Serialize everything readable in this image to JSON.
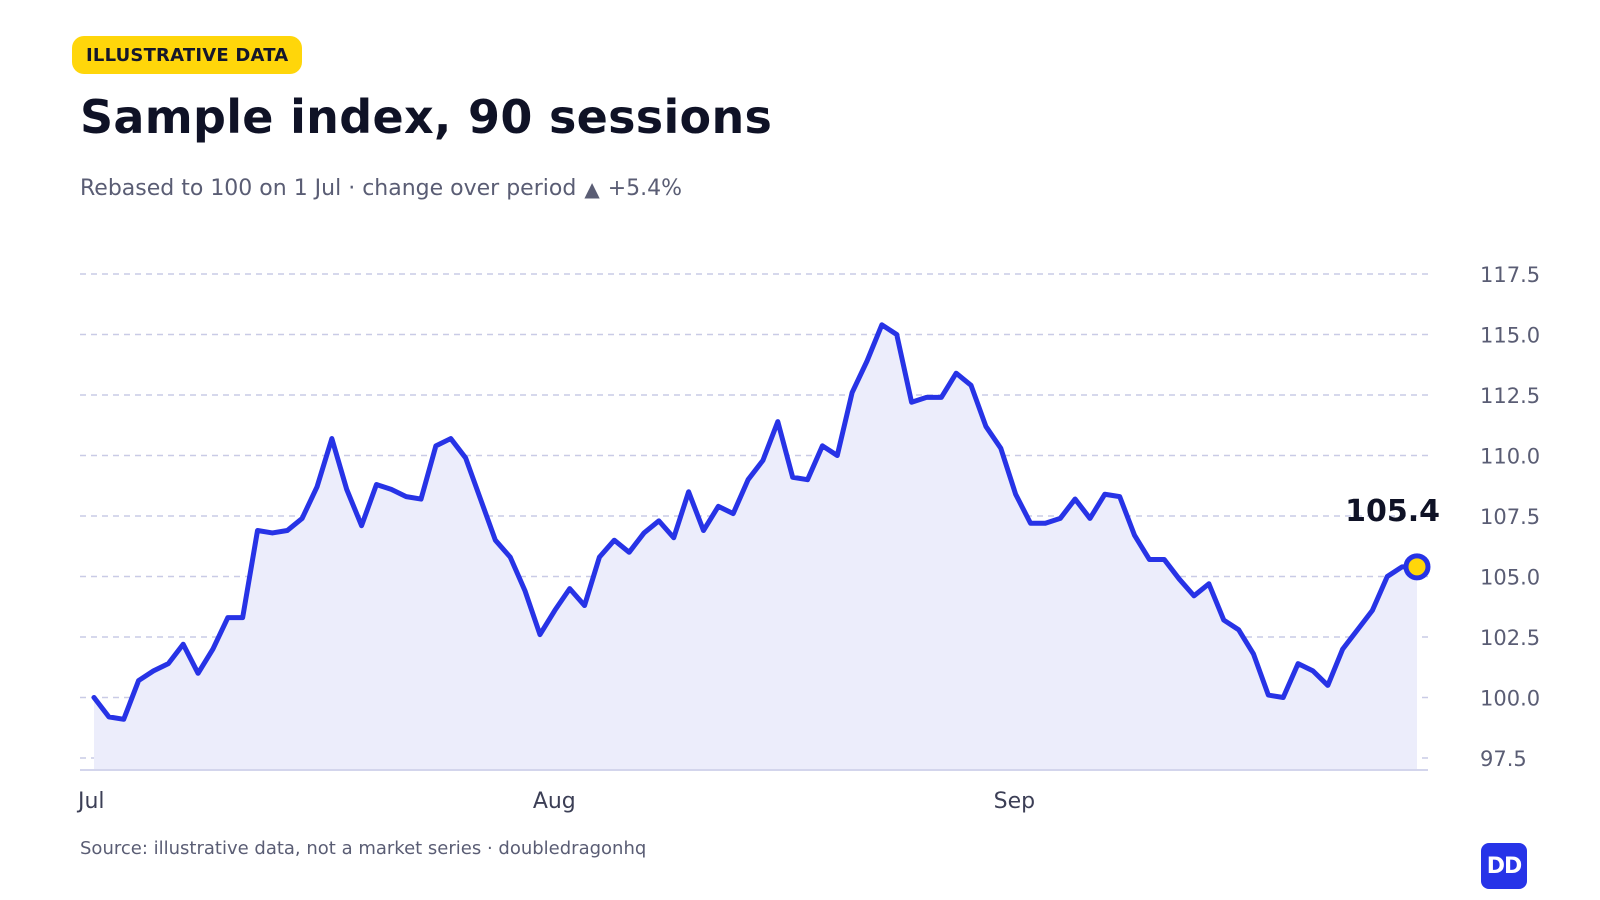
{
  "badge": "ILLUSTRATIVE DATA",
  "subtitle": {
    "text": "Rebased to 100 on 1 Jul · change over period",
    "change_icon": "triangle-up-icon",
    "change": "+5.4%"
  },
  "source": "Source: illustrative data, not a market series · doubledragonhq",
  "logo": {
    "text": "DD",
    "color": "#2734e8"
  },
  "colors": {
    "line": "#2733e6",
    "area": "#ecedfb",
    "grid": "#c9cbe6",
    "marker": "#ffd60a"
  },
  "chart_data": {
    "type": "line",
    "title": "Sample index, 90 sessions",
    "xlabel": "",
    "ylabel": "",
    "x_tick_labels": [
      "Jul",
      "Aug",
      "Sep"
    ],
    "x_tick_positions": [
      1,
      32,
      63
    ],
    "x": [
      1,
      2,
      3,
      4,
      5,
      6,
      7,
      8,
      9,
      10,
      11,
      12,
      13,
      14,
      15,
      16,
      17,
      18,
      19,
      20,
      21,
      22,
      23,
      24,
      25,
      26,
      27,
      28,
      29,
      30,
      31,
      32,
      33,
      34,
      35,
      36,
      37,
      38,
      39,
      40,
      41,
      42,
      43,
      44,
      45,
      46,
      47,
      48,
      49,
      50,
      51,
      52,
      53,
      54,
      55,
      56,
      57,
      58,
      59,
      60,
      61,
      62,
      63,
      64,
      65,
      66,
      67,
      68,
      69,
      70,
      71,
      72,
      73,
      74,
      75,
      76,
      77,
      78,
      79,
      80,
      81,
      82,
      83,
      84,
      85,
      86,
      87,
      88,
      89,
      90
    ],
    "series": [
      {
        "values": [
          100.0,
          99.2,
          99.1,
          100.7,
          101.1,
          101.4,
          102.2,
          101.0,
          102.0,
          103.3,
          103.3,
          106.9,
          106.8,
          106.9,
          107.4,
          108.7,
          110.7,
          108.6,
          107.1,
          108.8,
          108.6,
          108.3,
          108.2,
          110.4,
          110.7,
          109.9,
          108.2,
          106.5,
          105.8,
          104.4,
          102.6,
          103.6,
          104.5,
          103.8,
          105.8,
          106.5,
          106.0,
          106.8,
          107.3,
          106.6,
          108.5,
          106.9,
          107.9,
          107.6,
          109.0,
          109.8,
          111.4,
          109.1,
          109.0,
          110.4,
          110.0,
          112.6,
          113.9,
          115.4,
          115.0,
          112.2,
          112.4,
          112.4,
          113.4,
          112.9,
          111.2,
          110.3,
          108.4,
          107.2,
          107.2,
          107.4,
          108.2,
          107.4,
          108.4,
          108.3,
          106.7,
          105.7,
          105.7,
          104.9,
          104.2,
          104.7,
          103.2,
          102.8,
          101.8,
          100.1,
          100.0,
          101.4,
          101.1,
          100.5,
          102.0,
          102.8,
          103.6,
          105.0,
          105.4,
          105.4
        ]
      }
    ],
    "y_ticks": [
      97.5,
      100.0,
      102.5,
      105.0,
      107.5,
      110.0,
      112.5,
      115.0,
      117.5
    ],
    "y_tick_labels": [
      "97.5",
      "100.0",
      "102.5",
      "105.0",
      "107.5",
      "110.0",
      "112.5",
      "115.0",
      "117.5"
    ],
    "ylim": [
      97.5,
      117.5
    ],
    "grid": true,
    "y_axis_position": "right",
    "last_value_label": "105.4"
  }
}
